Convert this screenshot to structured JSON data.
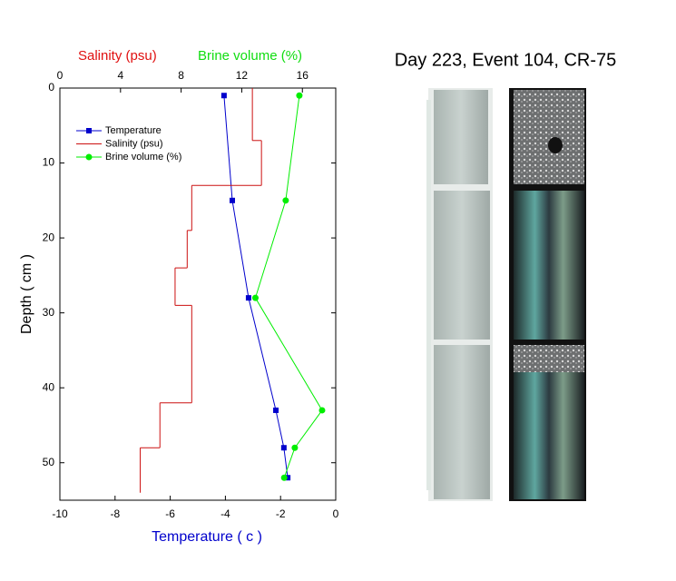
{
  "chart_data": {
    "type": "profile",
    "title": "Day 223, Event 104, CR-75",
    "y_label": "Depth ( cm )",
    "x_label": "Temperature ( c )",
    "x2_labels": [
      {
        "text": "Salinity (psu)",
        "color": "#e01010"
      },
      {
        "text": "Brine volume (%)",
        "color": "#10dd10"
      }
    ],
    "ylim": [
      0,
      55
    ],
    "yticks": [
      0,
      10,
      20,
      30,
      40,
      50
    ],
    "y_inverted": true,
    "xlim": [
      -10,
      0
    ],
    "xticks": [
      -10,
      -8,
      -6,
      -4,
      -2,
      0
    ],
    "x2lim": [
      0,
      18.2
    ],
    "x2ticks": [
      0,
      4,
      8,
      12,
      16
    ],
    "legend": "upper left",
    "series": [
      {
        "name": "Temperature",
        "color": "#0000cc",
        "marker": "square",
        "axis": "x",
        "depth": [
          1,
          15,
          28,
          43,
          48,
          52
        ],
        "values": [
          -4.05,
          -3.75,
          -3.16,
          -2.17,
          -1.88,
          -1.74
        ]
      },
      {
        "name": "Salinity (psu)",
        "color": "#cc1010",
        "marker": "none",
        "axis": "x2",
        "step": true,
        "depth_bins": [
          0,
          7,
          13,
          19,
          24,
          29,
          42,
          48,
          54
        ],
        "values": [
          12.7,
          13.3,
          8.7,
          8.4,
          7.6,
          8.7,
          6.6,
          5.3
        ]
      },
      {
        "name": "Brine volume (%)",
        "color": "#00ee00",
        "marker": "circle",
        "axis": "x2",
        "depth": [
          1,
          15,
          28,
          43,
          48,
          52
        ],
        "values": [
          15.8,
          14.9,
          12.9,
          17.3,
          15.5,
          14.8
        ]
      }
    ]
  }
}
